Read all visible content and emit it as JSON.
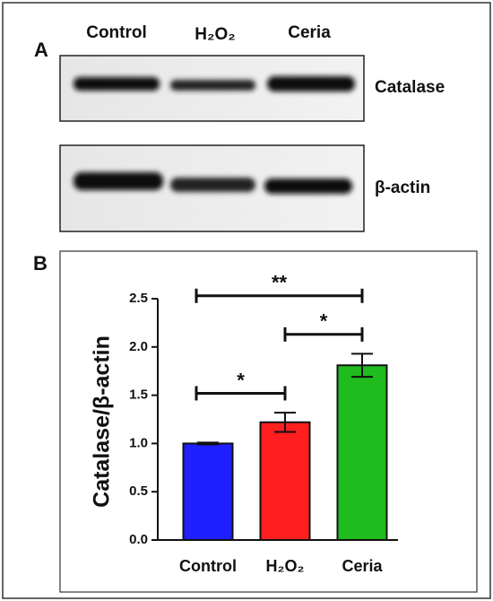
{
  "figure": {
    "panels": [
      "A",
      "B"
    ]
  },
  "blot": {
    "lanes": [
      "Control",
      "H₂O₂",
      "Ceria"
    ],
    "rows": [
      "Catalase",
      "β-actin"
    ]
  },
  "chart_data": {
    "type": "bar",
    "y_label": "Catalase/β-actin",
    "categories": [
      "Control",
      "H₂O₂",
      "Ceria"
    ],
    "values": [
      1.0,
      1.22,
      1.81
    ],
    "errors": [
      0.01,
      0.1,
      0.12
    ],
    "colors": [
      "#1f1fff",
      "#ff1f1f",
      "#1fbb1f"
    ],
    "ylim": [
      0,
      2.5
    ],
    "yticks": [
      {
        "value": 0,
        "label": "0.0"
      },
      {
        "value": 0.5,
        "label": "0.5"
      },
      {
        "value": 1,
        "label": "1.0"
      },
      {
        "value": 1.5,
        "label": "1.5"
      },
      {
        "value": 2,
        "label": "2.0"
      },
      {
        "value": 2.5,
        "label": "2.5"
      }
    ],
    "annotations": [
      {
        "between": [
          "Control",
          "H₂O₂"
        ],
        "label": "*"
      },
      {
        "between": [
          "H₂O₂",
          "Ceria"
        ],
        "label": "*"
      },
      {
        "between": [
          "Control",
          "Ceria"
        ],
        "label": "**"
      }
    ]
  }
}
